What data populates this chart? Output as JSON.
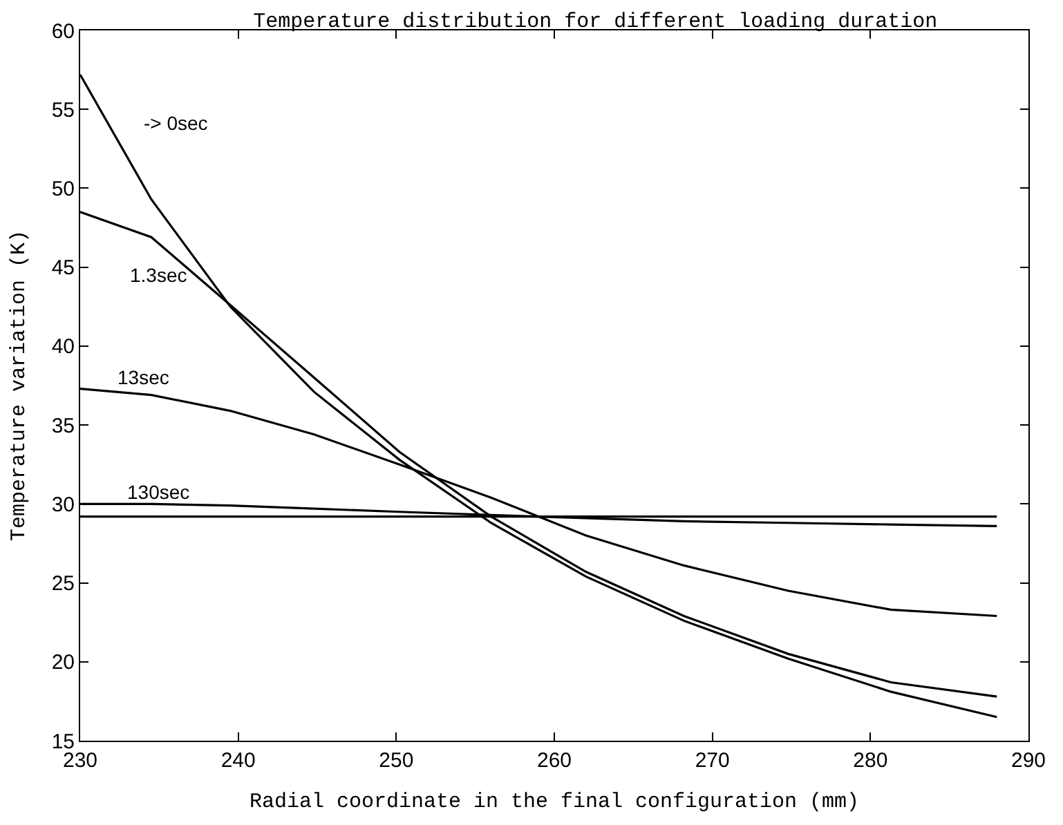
{
  "chart_data": {
    "type": "line",
    "title": "Temperature distribution for different loading duration",
    "xlabel": "Radial coordinate in the final configuration (mm)",
    "ylabel": "Temperature variation (K)",
    "x": [
      230,
      234.5,
      239.5,
      244.8,
      250.2,
      256,
      262,
      268.2,
      274.8,
      281.3,
      288
    ],
    "series": [
      {
        "name": "-> 0sec",
        "color": "#000000",
        "values": [
          57.2,
          49.3,
          42.5,
          37.1,
          32.8,
          28.8,
          25.4,
          22.6,
          20.2,
          18.1,
          16.5
        ]
      },
      {
        "name": "1.3sec",
        "color": "#000000",
        "values": [
          48.5,
          46.9,
          42.6,
          38,
          33.3,
          29.2,
          25.7,
          22.9,
          20.5,
          18.7,
          17.8
        ]
      },
      {
        "name": "13sec",
        "color": "#000000",
        "values": [
          37.3,
          36.9,
          35.9,
          34.4,
          32.5,
          30.4,
          28,
          26.1,
          24.5,
          23.3,
          22.9
        ]
      },
      {
        "name": "130sec",
        "color": "#000000",
        "values": [
          30,
          30,
          29.9,
          29.7,
          29.5,
          29.3,
          29.1,
          28.9,
          28.8,
          28.7,
          28.6
        ]
      },
      {
        "color": "#000000",
        "values": [
          29.2,
          29.2,
          29.2,
          29.2,
          29.2,
          29.2,
          29.2,
          29.2,
          29.2,
          29.2,
          29.2
        ]
      }
    ],
    "xlim": [
      230,
      290
    ],
    "xticks": [
      230,
      240,
      250,
      260,
      270,
      280,
      290
    ],
    "ylim": [
      15,
      60
    ],
    "yticks": [
      15,
      20,
      25,
      30,
      35,
      40,
      45,
      50,
      55,
      60
    ],
    "legend": "top left",
    "marker": "none",
    "line_style": "solid"
  }
}
